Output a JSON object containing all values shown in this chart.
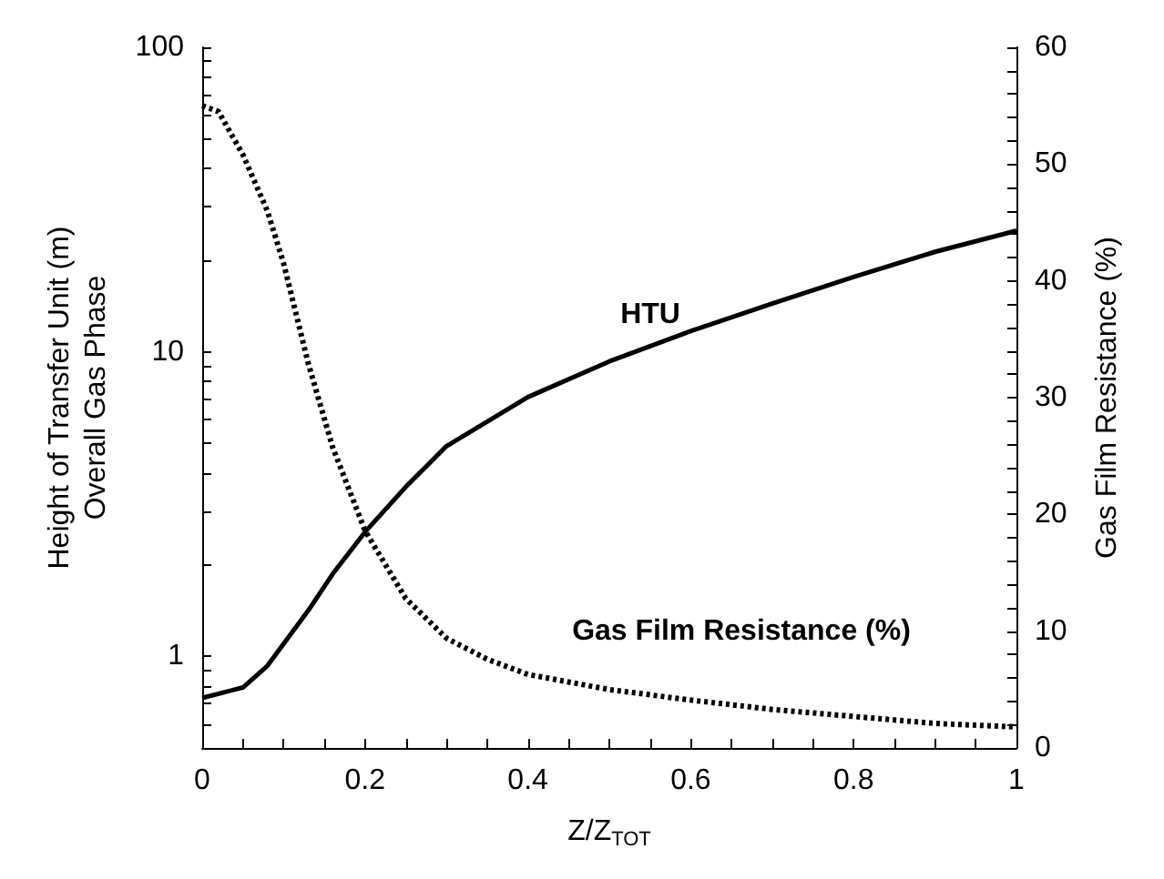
{
  "chart_data": {
    "type": "line",
    "xlabel": "Z/Z$_{TOT}$",
    "ylabel": "Height of Transfer Unit (m)\nOverall Gas Phase",
    "y2label": "Gas Film Resistance (%)",
    "log": "y",
    "marker": "none",
    "xlim": [
      0,
      1
    ],
    "xticks": [
      0,
      {
        "value": 0.05,
        "label": null
      },
      {
        "value": 0.1,
        "label": null
      },
      {
        "value": 0.15,
        "label": null
      },
      0.2,
      {
        "value": 0.25,
        "label": null
      },
      {
        "value": 0.3,
        "label": null
      },
      {
        "value": 0.35,
        "label": null
      },
      0.4,
      {
        "value": 0.45,
        "label": null
      },
      {
        "value": 0.5,
        "label": null
      },
      {
        "value": 0.55,
        "label": null
      },
      0.6,
      {
        "value": 0.65,
        "label": null
      },
      {
        "value": 0.7,
        "label": null
      },
      {
        "value": 0.75,
        "label": null
      },
      0.8,
      {
        "value": 0.85,
        "label": null
      },
      {
        "value": 0.9,
        "label": null
      },
      {
        "value": 0.95,
        "label": null
      },
      1
    ],
    "ylim": [
      0.5,
      100
    ],
    "yticks": [
      {
        "value": 0.5,
        "label": null
      },
      {
        "value": 0.6,
        "label": null
      },
      {
        "value": 0.7,
        "label": null
      },
      {
        "value": 0.8,
        "label": null
      },
      {
        "value": 0.9,
        "label": null
      },
      1,
      {
        "value": 2,
        "label": null
      },
      {
        "value": 3,
        "label": null
      },
      {
        "value": 4,
        "label": null
      },
      {
        "value": 5,
        "label": null
      },
      {
        "value": 6,
        "label": null
      },
      {
        "value": 7,
        "label": null
      },
      {
        "value": 8,
        "label": null
      },
      {
        "value": 9,
        "label": null
      },
      10,
      {
        "value": 20,
        "label": null
      },
      {
        "value": 30,
        "label": null
      },
      {
        "value": 40,
        "label": null
      },
      {
        "value": 50,
        "label": null
      },
      {
        "value": 60,
        "label": null
      },
      {
        "value": 70,
        "label": null
      },
      {
        "value": 80,
        "label": null
      },
      {
        "value": 90,
        "label": null
      },
      100
    ],
    "y2lim": [
      0,
      60
    ],
    "y2ticks": [
      0,
      {
        "value": 2,
        "label": null
      },
      {
        "value": 4,
        "label": null
      },
      {
        "value": 6,
        "label": null
      },
      {
        "value": 8,
        "label": null
      },
      10,
      {
        "value": 12,
        "label": null
      },
      {
        "value": 14,
        "label": null
      },
      {
        "value": 16,
        "label": null
      },
      {
        "value": 18,
        "label": null
      },
      20,
      {
        "value": 22,
        "label": null
      },
      {
        "value": 24,
        "label": null
      },
      {
        "value": 26,
        "label": null
      },
      {
        "value": 28,
        "label": null
      },
      30,
      {
        "value": 32,
        "label": null
      },
      {
        "value": 34,
        "label": null
      },
      {
        "value": 36,
        "label": null
      },
      {
        "value": 38,
        "label": null
      },
      40,
      {
        "value": 42,
        "label": null
      },
      {
        "value": 44,
        "label": null
      },
      {
        "value": 46,
        "label": null
      },
      {
        "value": 48,
        "label": null
      },
      50,
      {
        "value": 52,
        "label": null
      },
      {
        "value": 54,
        "label": null
      },
      {
        "value": 56,
        "label": null
      },
      {
        "value": 58,
        "label": null
      },
      60
    ],
    "annotations": [
      "HTU",
      "Gas Film Resistance (%)"
    ],
    "series": [
      {
        "color": "#000000",
        "line_style": "solid",
        "x": [
          0,
          0.05,
          0.08,
          0.1,
          0.13,
          0.16,
          0.2,
          0.25,
          0.3,
          0.4,
          0.5,
          0.6,
          0.7,
          0.8,
          0.9,
          1
        ],
        "values": [
          0.73,
          0.79,
          0.93,
          1.1,
          1.41,
          1.86,
          2.56,
          3.6,
          4.9,
          7.1,
          9.3,
          11.7,
          14.4,
          17.6,
          21.3,
          25
        ]
      },
      {
        "color": "#000000",
        "line_style": "dotted",
        "axis": "y2",
        "x": [
          0,
          0.02,
          0.05,
          0.08,
          0.1,
          0.13,
          0.16,
          0.2,
          0.25,
          0.3,
          0.35,
          0.4,
          0.5,
          0.6,
          0.7,
          0.8,
          0.9,
          1
        ],
        "values": [
          55,
          54.5,
          50.8,
          46,
          41.5,
          33,
          25.8,
          18.6,
          12.8,
          9.4,
          7.6,
          6.3,
          5,
          4.1,
          3.3,
          2.7,
          2.1,
          1.8
        ]
      }
    ]
  }
}
